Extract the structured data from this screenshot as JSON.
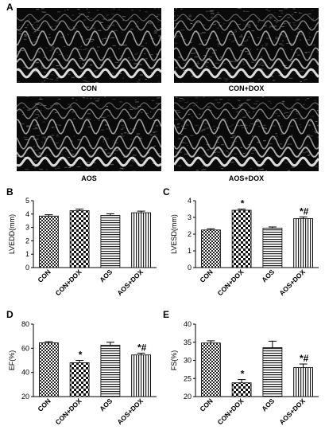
{
  "panel_letters": {
    "a": "A",
    "b": "B",
    "c": "C",
    "d": "D",
    "e": "E"
  },
  "echo_images": [
    {
      "caption": "CON"
    },
    {
      "caption": "CON+DOX"
    },
    {
      "caption": "AOS"
    },
    {
      "caption": "AOS+DOX"
    }
  ],
  "chart_data": [
    {
      "panel": "B",
      "type": "bar",
      "categories": [
        "CON",
        "CON+DOX",
        "AOS",
        "AOS+DOX"
      ],
      "values": [
        3.85,
        4.25,
        3.9,
        4.1
      ],
      "errors": [
        0.1,
        0.12,
        0.12,
        0.12
      ],
      "significance": [
        "",
        "",
        "",
        ""
      ],
      "ylabel": "LVEDD(mm)",
      "ylim": [
        0,
        5
      ],
      "yticks": [
        0,
        1,
        2,
        3,
        4,
        5
      ],
      "patterns": [
        "checker-small",
        "checker-large",
        "horizontal-lines",
        "vertical-lines"
      ],
      "grid": false
    },
    {
      "panel": "C",
      "type": "bar",
      "categories": [
        "CON",
        "CON+DOX",
        "AOS",
        "AOS+DOX"
      ],
      "values": [
        2.25,
        3.43,
        2.35,
        2.93
      ],
      "errors": [
        0.07,
        0.07,
        0.08,
        0.1
      ],
      "significance": [
        "",
        "*",
        "",
        "*#"
      ],
      "ylabel": "LVESD(mm)",
      "ylim": [
        0,
        4
      ],
      "yticks": [
        0,
        1,
        2,
        3,
        4
      ],
      "patterns": [
        "checker-small",
        "checker-large",
        "horizontal-lines",
        "vertical-lines"
      ],
      "grid": false
    },
    {
      "panel": "D",
      "type": "bar",
      "categories": [
        "CON",
        "CON+DOX",
        "AOS",
        "AOS+DOX"
      ],
      "values": [
        64.5,
        48,
        62.5,
        54.5
      ],
      "errors": [
        1,
        2,
        2.5,
        1.5
      ],
      "significance": [
        "",
        "*",
        "",
        "*#"
      ],
      "ylabel": "EF(%)",
      "ylim": [
        20,
        80
      ],
      "yticks": [
        20,
        40,
        60,
        80
      ],
      "patterns": [
        "checker-small",
        "checker-large",
        "horizontal-lines",
        "vertical-lines"
      ],
      "grid": false
    },
    {
      "panel": "E",
      "type": "bar",
      "categories": [
        "CON",
        "CON+DOX",
        "AOS",
        "AOS+DOX"
      ],
      "values": [
        34.8,
        23.8,
        33.5,
        28
      ],
      "errors": [
        0.6,
        0.9,
        1.8,
        1
      ],
      "significance": [
        "",
        "*",
        "",
        "*#"
      ],
      "ylabel": "FS(%)",
      "ylim": [
        20,
        40
      ],
      "yticks": [
        20,
        25,
        30,
        35,
        40
      ],
      "patterns": [
        "checker-small",
        "checker-large",
        "horizontal-lines",
        "vertical-lines"
      ],
      "grid": false
    }
  ]
}
